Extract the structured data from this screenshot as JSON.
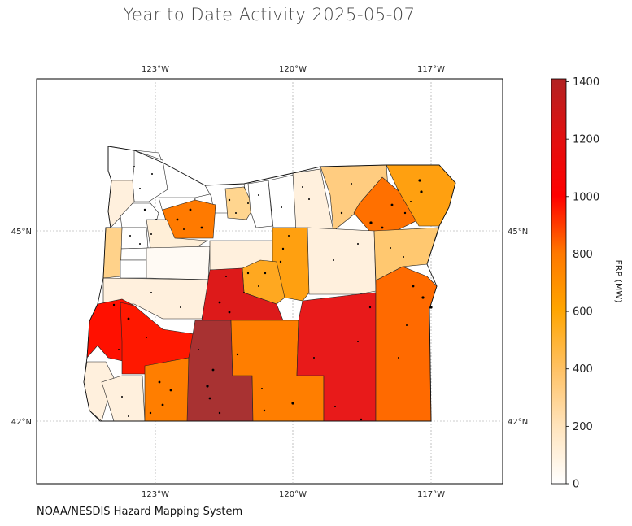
{
  "title": "Year to Date Activity 2025-05-07",
  "footer": "NOAA/NESDIS Hazard Mapping System",
  "map": {
    "lon_ticks": [
      "123°W",
      "120°W",
      "117°W"
    ],
    "lat_ticks": [
      "45°N",
      "42°N"
    ]
  },
  "colorbar": {
    "label": "FRP (MW)",
    "ticks": [
      "0",
      "200",
      "400",
      "600",
      "800",
      "1000",
      "1200",
      "1400"
    ],
    "range": [
      0,
      1400
    ],
    "colors": [
      "#ffffff",
      "#ffe0b0",
      "#ffc060",
      "#ffa500",
      "#ff7a00",
      "#ff2a00",
      "#ff0000",
      "#b22222"
    ]
  }
}
